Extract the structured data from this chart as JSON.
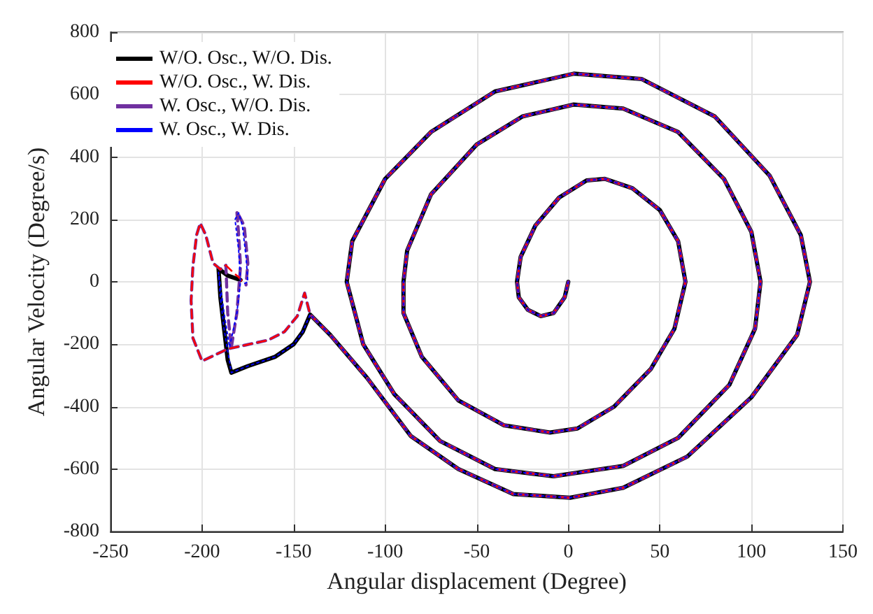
{
  "chart_data": {
    "type": "line",
    "xlabel": "Angular displacement (Degree)",
    "ylabel": "Angular Velocity (Degree/s)",
    "xlim": [
      -250,
      150
    ],
    "ylim": [
      -800,
      800
    ],
    "xticks": [
      -250,
      -200,
      -150,
      -100,
      -50,
      0,
      50,
      100,
      150
    ],
    "yticks": [
      -800,
      -600,
      -400,
      -200,
      0,
      200,
      400,
      600,
      800
    ],
    "grid": true,
    "legend": "top left",
    "marker": "none",
    "series": [
      {
        "name": "W/O. Osc., W/O. Dis.",
        "color": "#000000",
        "line_style": "solid",
        "x": [
          0,
          -2,
          -8,
          -15,
          -22,
          -27,
          -28,
          -26,
          -18,
          -5,
          10,
          20,
          35,
          50,
          60,
          64,
          58,
          45,
          25,
          5,
          -10,
          -35,
          -60,
          -80,
          -90,
          -90,
          -88,
          -75,
          -50,
          -25,
          3,
          30,
          60,
          85,
          100,
          105,
          102,
          88,
          60,
          30,
          -8,
          -40,
          -70,
          -95,
          -112,
          -121,
          -118,
          -100,
          -75,
          -40,
          3,
          40,
          80,
          110,
          127,
          132,
          125,
          100,
          65,
          30,
          1,
          -30,
          -60,
          -86,
          -110,
          -130,
          -141,
          -145,
          -150,
          -160,
          -175,
          -184,
          -186,
          -188,
          -190,
          -191,
          -186,
          -179
        ],
        "values": [
          0,
          -50,
          -100,
          -110,
          -90,
          -50,
          0,
          80,
          180,
          270,
          325,
          330,
          300,
          230,
          130,
          0,
          -150,
          -280,
          -400,
          -470,
          -483,
          -460,
          -380,
          -240,
          -100,
          0,
          100,
          280,
          440,
          530,
          568,
          555,
          480,
          330,
          160,
          0,
          -150,
          -330,
          -500,
          -590,
          -623,
          -600,
          -510,
          -360,
          -200,
          0,
          130,
          330,
          480,
          610,
          667,
          650,
          530,
          340,
          150,
          0,
          -170,
          -370,
          -560,
          -660,
          -692,
          -680,
          -600,
          -494,
          -307,
          -170,
          -105,
          -160,
          -200,
          -240,
          -270,
          -291,
          -250,
          -150,
          -50,
          42,
          20,
          6
        ]
      },
      {
        "name": "W/O. Osc., W. Dis.",
        "color": "#ff0000",
        "line_style": "dashed",
        "x": [
          0,
          -2,
          -8,
          -15,
          -22,
          -27,
          -28,
          -26,
          -18,
          -5,
          10,
          20,
          35,
          50,
          60,
          64,
          58,
          45,
          25,
          5,
          -10,
          -35,
          -60,
          -80,
          -90,
          -90,
          -88,
          -75,
          -50,
          -25,
          3,
          30,
          60,
          85,
          100,
          105,
          102,
          88,
          60,
          30,
          -8,
          -40,
          -70,
          -95,
          -112,
          -121,
          -118,
          -100,
          -75,
          -40,
          3,
          40,
          80,
          110,
          127,
          132,
          125,
          100,
          65,
          30,
          1,
          -30,
          -60,
          -86,
          -110,
          -130,
          -141,
          -144,
          -148,
          -155,
          -164,
          -186,
          -200,
          -205,
          -206,
          -205,
          -203,
          -201,
          -198,
          -194,
          -190,
          -187,
          -183,
          -180,
          -178
        ],
        "values": [
          0,
          -50,
          -100,
          -110,
          -90,
          -50,
          0,
          80,
          180,
          270,
          325,
          330,
          300,
          230,
          130,
          0,
          -150,
          -280,
          -400,
          -470,
          -483,
          -460,
          -380,
          -240,
          -100,
          0,
          100,
          280,
          440,
          530,
          568,
          555,
          480,
          330,
          160,
          0,
          -150,
          -330,
          -500,
          -590,
          -623,
          -600,
          -510,
          -360,
          -200,
          0,
          130,
          330,
          480,
          610,
          667,
          650,
          530,
          340,
          150,
          0,
          -170,
          -370,
          -560,
          -660,
          -692,
          -680,
          -600,
          -494,
          -307,
          -170,
          -105,
          -36,
          -110,
          -160,
          -187,
          -215,
          -254,
          -180,
          -60,
          50,
          150,
          188,
          150,
          60,
          40,
          53,
          30,
          15,
          0
        ]
      },
      {
        "name": "W. Osc., W/O. Dis.",
        "color": "#7030a0",
        "line_style": "dashed",
        "x": [
          0,
          -2,
          -8,
          -15,
          -22,
          -27,
          -28,
          -26,
          -18,
          -5,
          10,
          20,
          35,
          50,
          60,
          64,
          58,
          45,
          25,
          5,
          -10,
          -35,
          -60,
          -80,
          -90,
          -90,
          -88,
          -75,
          -50,
          -25,
          3,
          30,
          60,
          85,
          100,
          105,
          102,
          88,
          60,
          30,
          -8,
          -40,
          -70,
          -95,
          -112,
          -121,
          -118,
          -100,
          -75,
          -40,
          3,
          40,
          80,
          110,
          127,
          132,
          125,
          100,
          65,
          30,
          1,
          -30,
          -60,
          -86,
          -110,
          -130,
          -141,
          -144,
          -148,
          -155,
          -164,
          -186,
          -200,
          -205,
          -206,
          -205,
          -203,
          -201,
          -198,
          -194,
          -190,
          -187,
          -186,
          -184,
          -181,
          -179,
          -180,
          -181,
          -177,
          -175,
          -176
        ],
        "values": [
          0,
          -50,
          -100,
          -110,
          -90,
          -50,
          0,
          80,
          180,
          270,
          325,
          330,
          300,
          230,
          130,
          0,
          -150,
          -280,
          -400,
          -470,
          -483,
          -460,
          -380,
          -240,
          -100,
          0,
          100,
          280,
          440,
          530,
          568,
          555,
          480,
          330,
          160,
          0,
          -150,
          -330,
          -500,
          -590,
          -623,
          -600,
          -510,
          -360,
          -200,
          0,
          130,
          330,
          480,
          610,
          667,
          650,
          530,
          340,
          150,
          0,
          -170,
          -370,
          -560,
          -660,
          -692,
          -680,
          -600,
          -494,
          -307,
          -170,
          -105,
          -36,
          -110,
          -160,
          -187,
          -215,
          -254,
          -180,
          -60,
          50,
          150,
          188,
          150,
          60,
          40,
          53,
          -100,
          -210,
          -100,
          50,
          150,
          225,
          180,
          60,
          -10
        ]
      },
      {
        "name": "W. Osc., W. Dis.",
        "color": "#0000ff",
        "line_style": "dotted",
        "x": [
          0,
          -2,
          -8,
          -15,
          -22,
          -27,
          -28,
          -26,
          -18,
          -5,
          10,
          20,
          35,
          50,
          60,
          64,
          58,
          45,
          25,
          5,
          -10,
          -35,
          -60,
          -80,
          -90,
          -90,
          -88,
          -75,
          -50,
          -25,
          3,
          30,
          60,
          85,
          100,
          105,
          102,
          88,
          60,
          30,
          -8,
          -40,
          -70,
          -95,
          -112,
          -121,
          -118,
          -100,
          -75,
          -40,
          3,
          40,
          80,
          110,
          127,
          132,
          125,
          100,
          65,
          30,
          1,
          -30,
          -60,
          -86,
          -110,
          -130,
          -141,
          -145,
          -150,
          -160,
          -175,
          -184,
          -188,
          -190,
          -191,
          -188,
          -185,
          -181,
          -179,
          -180,
          -182,
          -180,
          -178,
          -176,
          -175,
          -177
        ],
        "values": [
          0,
          -50,
          -100,
          -110,
          -90,
          -50,
          0,
          80,
          180,
          270,
          325,
          330,
          300,
          230,
          130,
          0,
          -150,
          -280,
          -400,
          -470,
          -483,
          -460,
          -380,
          -240,
          -100,
          0,
          100,
          280,
          440,
          530,
          568,
          555,
          480,
          330,
          160,
          0,
          -150,
          -330,
          -500,
          -590,
          -623,
          -600,
          -510,
          -360,
          -200,
          0,
          130,
          330,
          480,
          610,
          667,
          650,
          530,
          340,
          150,
          0,
          -170,
          -370,
          -560,
          -660,
          -692,
          -680,
          -600,
          -494,
          -307,
          -170,
          -105,
          -160,
          -200,
          -240,
          -270,
          -291,
          -150,
          -50,
          30,
          -100,
          -210,
          -100,
          0,
          100,
          200,
          221,
          180,
          80,
          0,
          -6
        ]
      }
    ]
  }
}
